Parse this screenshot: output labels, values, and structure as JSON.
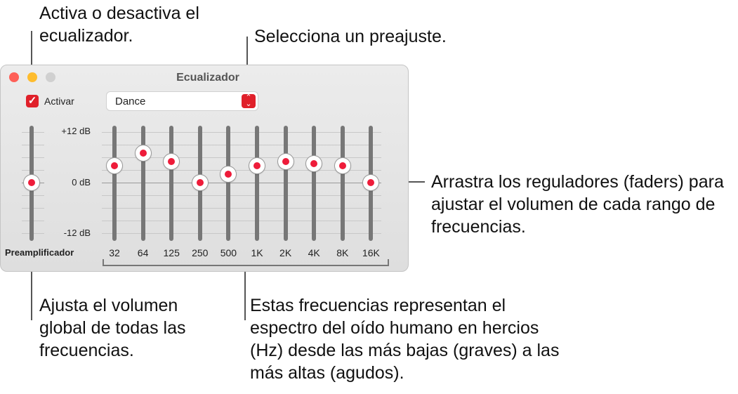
{
  "callouts": {
    "toggle": "Activa o desactiva el ecualizador.",
    "preset": "Selecciona un preajuste.",
    "faders": "Arrastra los reguladores (faders) para ajustar el volumen de cada rango de frecuencias.",
    "preamp": "Ajusta el volumen global de todas las frecuencias.",
    "frequencies": "Estas frecuencias representan el espectro del oído humano en hercios (Hz) desde las más bajas (graves) a las más altas (agudos)."
  },
  "window": {
    "title": "Ecualizador",
    "activate_label": "Activar",
    "activated": true,
    "preset": "Dance",
    "accent": "#e0202a"
  },
  "scale": {
    "top": "+12 dB",
    "mid": "0 dB",
    "bottom": "-12 dB"
  },
  "preamp": {
    "label": "Preamplificador",
    "value_db": 0
  },
  "bands": [
    {
      "label": "32",
      "value_db": 4
    },
    {
      "label": "64",
      "value_db": 7
    },
    {
      "label": "125",
      "value_db": 5
    },
    {
      "label": "250",
      "value_db": 0
    },
    {
      "label": "500",
      "value_db": 2
    },
    {
      "label": "1K",
      "value_db": 4
    },
    {
      "label": "2K",
      "value_db": 5
    },
    {
      "label": "4K",
      "value_db": 4.5
    },
    {
      "label": "8K",
      "value_db": 4
    },
    {
      "label": "16K",
      "value_db": 0
    }
  ]
}
